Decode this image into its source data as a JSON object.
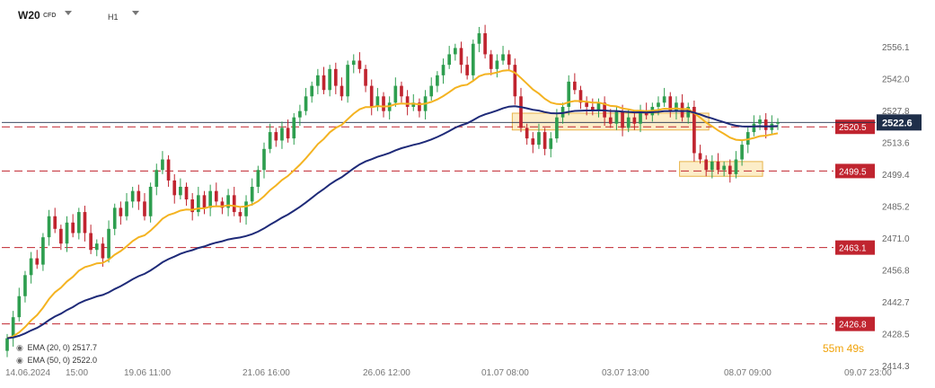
{
  "header": {
    "symbol": "W20",
    "instrument_type": "CFD",
    "timeframe": "H1"
  },
  "indicators": [
    {
      "label": "EMA (20, 0) 2517.7",
      "color": "#f4b321"
    },
    {
      "label": "EMA (50, 0) 2522.0",
      "color": "#1e2a78"
    }
  ],
  "countdown": "55m 49s",
  "colors": {
    "up": "#2e9e4f",
    "down": "#c0242f",
    "level_line": "#c0242f",
    "zone_fill": "#fbe6b0",
    "zone_stroke": "#e8b44a"
  },
  "chart_data": {
    "type": "candlestick",
    "ylim": [
      2410,
      2568
    ],
    "y_ticks": [
      "2556.1",
      "2542.0",
      "2527.8",
      "2513.6",
      "2499.4",
      "2485.2",
      "2471.0",
      "2456.8",
      "2442.7",
      "2428.5",
      "2414.3"
    ],
    "x_tick_labels": [
      "14.06.2024",
      "15:00",
      "19.06 11:00",
      "21.06 16:00",
      "26.06 12:00",
      "01.07 08:00",
      "03.07 13:00",
      "08.07 09:00",
      "09.07 23:00"
    ],
    "current_price": {
      "value": 2522.6,
      "label": "2522.6"
    },
    "levels": [
      {
        "value": 2520.5,
        "label": "2520.5"
      },
      {
        "value": 2499.5,
        "label": "2499.5"
      },
      {
        "value": 2463.1,
        "label": "2463.1"
      },
      {
        "value": 2426.8,
        "label": "2426.8"
      }
    ],
    "zones": [
      {
        "from_bar": 85,
        "to_bar": 117,
        "low": 2519,
        "high": 2527
      },
      {
        "from_bar": 113,
        "to_bar": 126,
        "low": 2497,
        "high": 2504
      }
    ],
    "closes": [
      2420,
      2430,
      2440,
      2450,
      2458,
      2455,
      2468,
      2478,
      2472,
      2465,
      2475,
      2470,
      2480,
      2470,
      2462,
      2465,
      2458,
      2472,
      2482,
      2478,
      2485,
      2490,
      2485,
      2478,
      2492,
      2500,
      2505,
      2495,
      2488,
      2492,
      2486,
      2480,
      2488,
      2482,
      2490,
      2485,
      2482,
      2488,
      2480,
      2478,
      2485,
      2492,
      2500,
      2510,
      2518,
      2514,
      2520,
      2515,
      2525,
      2528,
      2535,
      2540,
      2545,
      2538,
      2548,
      2540,
      2535,
      2550,
      2552,
      2548,
      2540,
      2530,
      2535,
      2528,
      2532,
      2540,
      2535,
      2530,
      2532,
      2528,
      2535,
      2540,
      2545,
      2550,
      2555,
      2558,
      2550,
      2545,
      2560,
      2565,
      2555,
      2548,
      2552,
      2555,
      2550,
      2535,
      2520,
      2515,
      2512,
      2518,
      2510,
      2515,
      2525,
      2530,
      2542,
      2538,
      2532,
      2530,
      2528,
      2532,
      2525,
      2522,
      2528,
      2520,
      2525,
      2522,
      2528,
      2526,
      2530,
      2532,
      2535,
      2528,
      2532,
      2525,
      2530,
      2508,
      2505,
      2500,
      2504,
      2500,
      2502,
      2498,
      2505,
      2512,
      2518,
      2522,
      2524,
      2519,
      2522,
      2522.6
    ]
  }
}
